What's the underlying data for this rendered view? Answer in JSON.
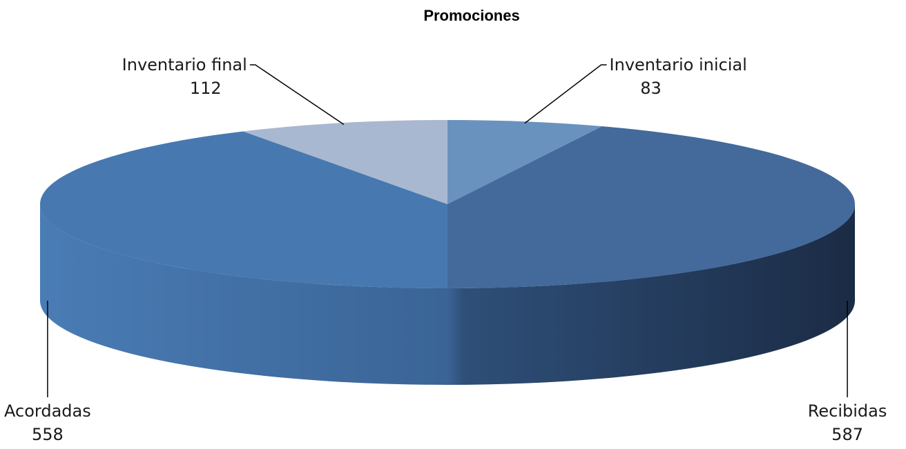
{
  "chart_data": {
    "type": "pie",
    "title": "Promociones",
    "slices": [
      {
        "label": "Inventario inicial",
        "value": 83,
        "color": "#6a92bf"
      },
      {
        "label": "Recibidas",
        "value": 587,
        "color": "#436a9a"
      },
      {
        "label": "Acordadas",
        "value": 558,
        "color": "#4779b0"
      },
      {
        "label": "Inventario final",
        "value": 112,
        "color": "#a9b8d1"
      }
    ],
    "style": "3d"
  }
}
